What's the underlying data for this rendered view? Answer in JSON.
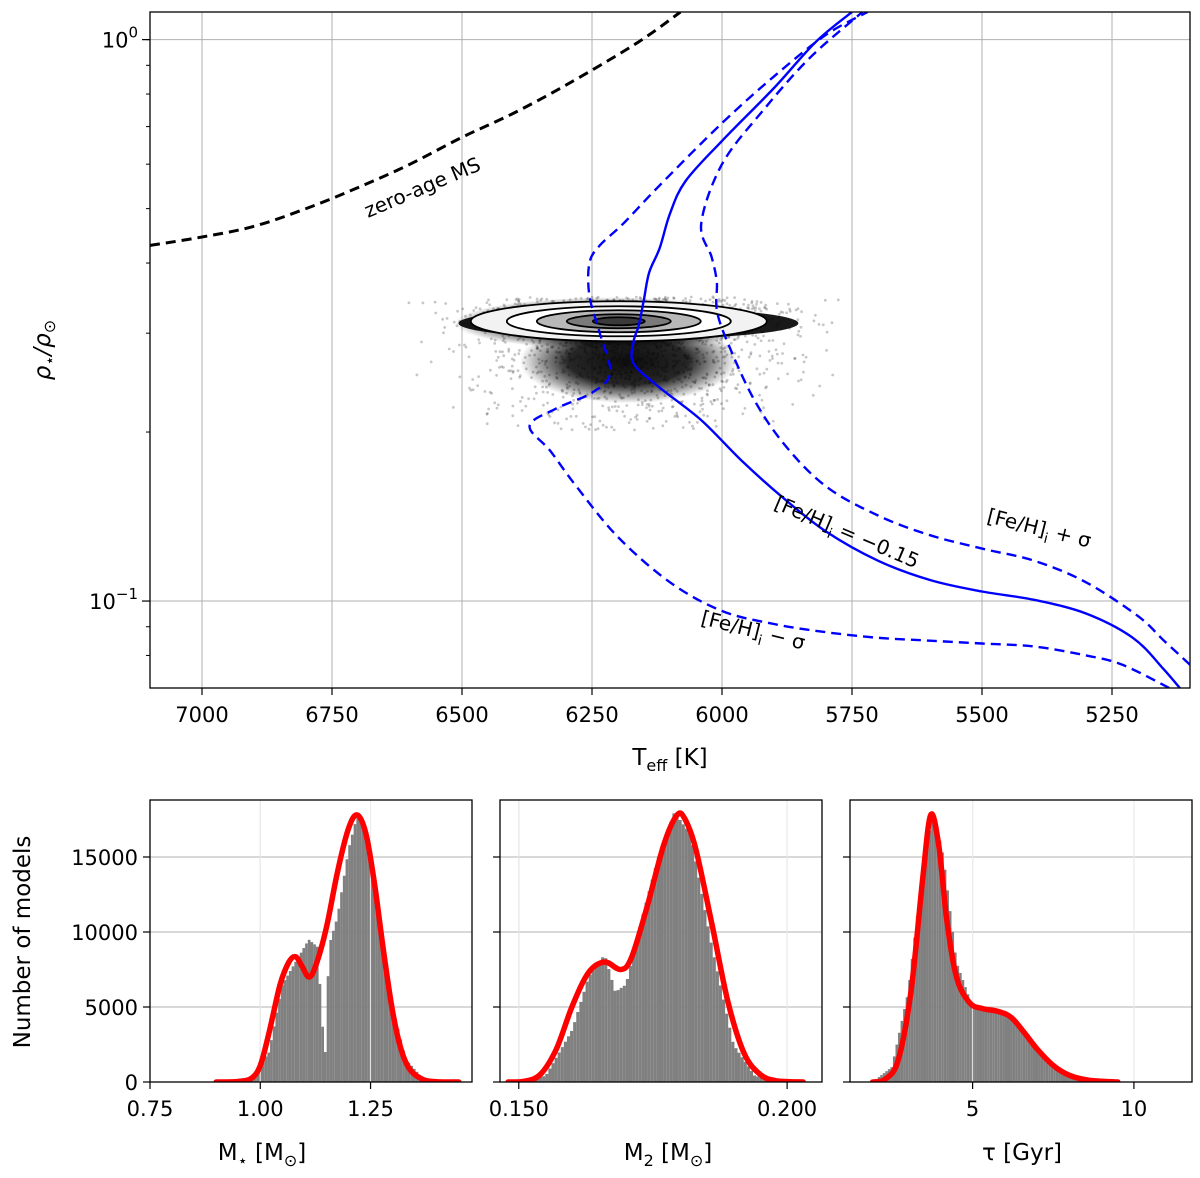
{
  "chart_data": [
    {
      "type": "scatter",
      "title": "",
      "xlabel": "T_eff [K]",
      "ylabel": "ρ*/ρ☉",
      "xlim": [
        7100,
        5100
      ],
      "ylim": [
        0.07,
        1.12
      ],
      "yscale": "log",
      "grid": true,
      "x_ticks": [
        7000,
        6750,
        6500,
        6250,
        6000,
        5750,
        5500,
        5250
      ],
      "y_ticks": [
        {
          "value": 1.0,
          "label": "10^0"
        },
        {
          "value": 0.1,
          "label": "10^-1"
        }
      ],
      "series": [
        {
          "name": "zero-age MS",
          "style": "black-dashed",
          "points": [
            [
              7100,
              0.43
            ],
            [
              7000,
              0.445
            ],
            [
              6900,
              0.465
            ],
            [
              6800,
              0.5
            ],
            [
              6700,
              0.545
            ],
            [
              6600,
              0.6
            ],
            [
              6500,
              0.67
            ],
            [
              6400,
              0.74
            ],
            [
              6300,
              0.83
            ],
            [
              6200,
              0.94
            ],
            [
              6140,
              1.02
            ],
            [
              6080,
              1.12
            ]
          ]
        },
        {
          "name": "[Fe/H]i = -0.15",
          "style": "blue-solid",
          "points": [
            [
              5100,
              0.0665
            ],
            [
              5150,
              0.0755
            ],
            [
              5210,
              0.086
            ],
            [
              5300,
              0.095
            ],
            [
              5400,
              0.1005
            ],
            [
              5500,
              0.104
            ],
            [
              5600,
              0.109
            ],
            [
              5700,
              0.118
            ],
            [
              5800,
              0.133
            ],
            [
              5880,
              0.152
            ],
            [
              5960,
              0.177
            ],
            [
              6040,
              0.21
            ],
            [
              6120,
              0.24
            ],
            [
              6170,
              0.265
            ],
            [
              6170,
              0.29
            ],
            [
              6160,
              0.31
            ],
            [
              6150,
              0.345
            ],
            [
              6140,
              0.385
            ],
            [
              6120,
              0.425
            ],
            [
              6100,
              0.49
            ],
            [
              6070,
              0.56
            ],
            [
              6000,
              0.66
            ],
            [
              5900,
              0.82
            ],
            [
              5820,
              0.99
            ],
            [
              5750,
              1.12
            ]
          ]
        },
        {
          "name": "[Fe/H]i + σ",
          "style": "blue-dashed",
          "points": [
            [
              5100,
              0.077
            ],
            [
              5150,
              0.085
            ],
            [
              5200,
              0.094
            ],
            [
              5300,
              0.108
            ],
            [
              5400,
              0.118
            ],
            [
              5500,
              0.124
            ],
            [
              5600,
              0.131
            ],
            [
              5700,
              0.142
            ],
            [
              5800,
              0.16
            ],
            [
              5880,
              0.19
            ],
            [
              5940,
              0.23
            ],
            [
              5990,
              0.29
            ],
            [
              6010,
              0.33
            ],
            [
              6010,
              0.37
            ],
            [
              6020,
              0.41
            ],
            [
              6040,
              0.47
            ],
            [
              6000,
              0.6
            ],
            [
              5920,
              0.75
            ],
            [
              5830,
              0.93
            ],
            [
              5730,
              1.12
            ]
          ]
        },
        {
          "name": "[Fe/H]i − σ",
          "style": "blue-dashed",
          "points": [
            [
              5140,
              0.07
            ],
            [
              5230,
              0.077
            ],
            [
              5300,
              0.08
            ],
            [
              5400,
              0.083
            ],
            [
              5500,
              0.084
            ],
            [
              5600,
              0.085
            ],
            [
              5700,
              0.086
            ],
            [
              5800,
              0.088
            ],
            [
              5900,
              0.091
            ],
            [
              6000,
              0.096
            ],
            [
              6100,
              0.108
            ],
            [
              6200,
              0.13
            ],
            [
              6280,
              0.16
            ],
            [
              6330,
              0.185
            ],
            [
              6370,
              0.205
            ],
            [
              6320,
              0.22
            ],
            [
              6250,
              0.235
            ],
            [
              6215,
              0.255
            ],
            [
              6235,
              0.3
            ],
            [
              6255,
              0.35
            ],
            [
              6255,
              0.4
            ],
            [
              6235,
              0.43
            ],
            [
              6190,
              0.47
            ],
            [
              6120,
              0.55
            ],
            [
              6000,
              0.71
            ],
            [
              5900,
              0.86
            ],
            [
              5800,
              1.02
            ],
            [
              5720,
              1.12
            ]
          ]
        }
      ],
      "posterior_cloud": {
        "center_teff": 6210,
        "center_rho": 0.315,
        "teff_range": [
          6560,
          5800
        ],
        "rho_range": [
          0.21,
          0.34
        ]
      },
      "annotations": [
        {
          "text": "zero-age MS",
          "x": 6700,
          "y": 0.44
        },
        {
          "text": "[Fe/H]",
          "x": 5540,
          "y": 0.14
        },
        {
          "text": "[Fe/H]",
          "x": 5130,
          "y": 0.122
        },
        {
          "text": "[Fe/H]",
          "x": 5820,
          "y": 0.083
        }
      ]
    },
    {
      "type": "bar",
      "xlabel": "M* [M☉]",
      "ylabel": "Number of models",
      "xlim": [
        0.75,
        1.48
      ],
      "ylim": [
        0,
        18800
      ],
      "x_ticks": [
        0.75,
        1.0,
        1.25
      ],
      "x_tick_labels": [
        "0.75",
        "1.00",
        "1.25"
      ],
      "y_ticks": [
        0,
        5000,
        10000,
        15000
      ],
      "histogram_profile": [
        [
          0.9,
          0
        ],
        [
          0.98,
          300
        ],
        [
          1.02,
          2000
        ],
        [
          1.05,
          6500
        ],
        [
          1.08,
          8000
        ],
        [
          1.11,
          9500
        ],
        [
          1.13,
          9000
        ],
        [
          1.145,
          2000
        ],
        [
          1.15,
          2000
        ],
        [
          1.155,
          9000
        ],
        [
          1.175,
          11000
        ],
        [
          1.2,
          15500
        ],
        [
          1.22,
          17800
        ],
        [
          1.24,
          16500
        ],
        [
          1.27,
          10500
        ],
        [
          1.3,
          5000
        ],
        [
          1.33,
          1500
        ],
        [
          1.37,
          200
        ],
        [
          1.45,
          0
        ]
      ],
      "fit_curve": [
        [
          0.9,
          0
        ],
        [
          0.95,
          30
        ],
        [
          0.98,
          250
        ],
        [
          1.0,
          1100
        ],
        [
          1.02,
          3300
        ],
        [
          1.045,
          6500
        ],
        [
          1.065,
          8000
        ],
        [
          1.08,
          8350
        ],
        [
          1.095,
          7700
        ],
        [
          1.11,
          7000
        ],
        [
          1.125,
          7700
        ],
        [
          1.15,
          10300
        ],
        [
          1.175,
          14000
        ],
        [
          1.2,
          16900
        ],
        [
          1.22,
          17800
        ],
        [
          1.24,
          16500
        ],
        [
          1.26,
          13000
        ],
        [
          1.28,
          8600
        ],
        [
          1.3,
          4700
        ],
        [
          1.32,
          2100
        ],
        [
          1.34,
          800
        ],
        [
          1.37,
          150
        ],
        [
          1.4,
          20
        ],
        [
          1.45,
          0
        ]
      ]
    },
    {
      "type": "bar",
      "xlabel": "M2 [M☉]",
      "xlim": [
        0.1465,
        0.2065
      ],
      "ylim": [
        0,
        18800
      ],
      "x_ticks": [
        0.15,
        0.2
      ],
      "x_tick_labels": [
        "0.150",
        "0.200"
      ],
      "y_ticks": [
        0,
        5000,
        10000,
        15000
      ],
      "histogram_profile": [
        [
          0.148,
          0
        ],
        [
          0.155,
          400
        ],
        [
          0.16,
          3500
        ],
        [
          0.163,
          7000
        ],
        [
          0.166,
          8500
        ],
        [
          0.168,
          6000
        ],
        [
          0.17,
          6500
        ],
        [
          0.173,
          11000
        ],
        [
          0.176,
          15000
        ],
        [
          0.179,
          18000
        ],
        [
          0.182,
          16500
        ],
        [
          0.186,
          9000
        ],
        [
          0.19,
          2500
        ],
        [
          0.194,
          400
        ],
        [
          0.2,
          0
        ]
      ],
      "fit_curve": [
        [
          0.148,
          0
        ],
        [
          0.151,
          50
        ],
        [
          0.154,
          500
        ],
        [
          0.157,
          2200
        ],
        [
          0.16,
          5100
        ],
        [
          0.163,
          7300
        ],
        [
          0.166,
          8000
        ],
        [
          0.169,
          7500
        ],
        [
          0.171,
          8300
        ],
        [
          0.174,
          11800
        ],
        [
          0.177,
          15800
        ],
        [
          0.1795,
          17800
        ],
        [
          0.181,
          17500
        ],
        [
          0.183,
          15500
        ],
        [
          0.186,
          10500
        ],
        [
          0.189,
          5300
        ],
        [
          0.192,
          1900
        ],
        [
          0.195,
          500
        ],
        [
          0.198,
          80
        ],
        [
          0.203,
          0
        ]
      ]
    },
    {
      "type": "bar",
      "xlabel": "τ [Gyr]",
      "xlim": [
        1.2,
        11.8
      ],
      "ylim": [
        0,
        18800
      ],
      "x_ticks": [
        5,
        10
      ],
      "x_tick_labels": [
        "5",
        "10"
      ],
      "y_ticks": [
        0,
        5000,
        10000,
        15000
      ],
      "histogram_profile": [
        [
          1.9,
          0
        ],
        [
          2.5,
          1000
        ],
        [
          3.0,
          6000
        ],
        [
          3.5,
          15000
        ],
        [
          3.8,
          18000
        ],
        [
          4.1,
          15000
        ],
        [
          4.5,
          8000
        ],
        [
          5.0,
          5000
        ],
        [
          5.5,
          4800
        ],
        [
          6.0,
          4600
        ],
        [
          6.5,
          3500
        ],
        [
          7.0,
          2000
        ],
        [
          7.5,
          900
        ],
        [
          8.0,
          300
        ],
        [
          9.0,
          0
        ]
      ],
      "fit_curve": [
        [
          1.9,
          0
        ],
        [
          2.3,
          200
        ],
        [
          2.7,
          1500
        ],
        [
          3.1,
          6200
        ],
        [
          3.45,
          13500
        ],
        [
          3.7,
          17800
        ],
        [
          3.95,
          15800
        ],
        [
          4.2,
          10800
        ],
        [
          4.5,
          7000
        ],
        [
          4.9,
          5300
        ],
        [
          5.3,
          4900
        ],
        [
          5.8,
          4700
        ],
        [
          6.2,
          4300
        ],
        [
          6.6,
          3300
        ],
        [
          7.0,
          2200
        ],
        [
          7.5,
          1100
        ],
        [
          8.0,
          450
        ],
        [
          8.6,
          120
        ],
        [
          9.5,
          0
        ]
      ]
    }
  ]
}
